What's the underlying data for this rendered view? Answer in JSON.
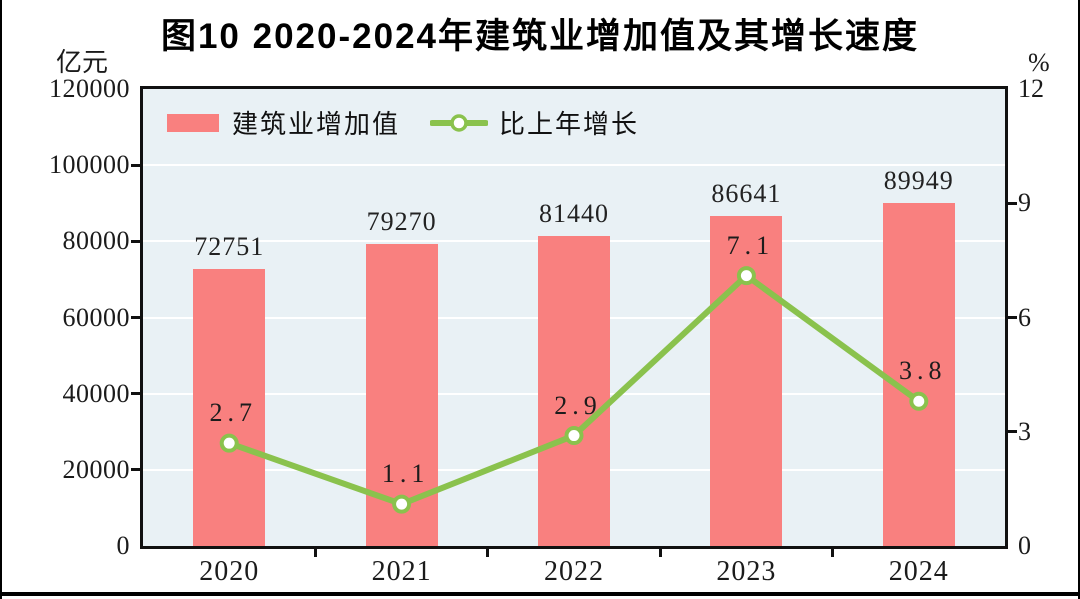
{
  "title": "图10  2020-2024年建筑业增加值及其增长速度",
  "axes": {
    "left_unit": "亿元",
    "right_unit": "%",
    "left_ticks": [
      "120000",
      "100000",
      "80000",
      "60000",
      "40000",
      "20000",
      "0"
    ],
    "right_ticks": [
      "12",
      "9",
      "6",
      "3",
      "0"
    ]
  },
  "legend": {
    "bar_label": "建筑业增加值",
    "line_label": "比上年增长"
  },
  "chart_data": {
    "type": "combo-bar-line",
    "title": "图10  2020-2024年建筑业增加值及其增长速度",
    "categories": [
      "2020",
      "2021",
      "2022",
      "2023",
      "2024"
    ],
    "series": [
      {
        "name": "建筑业增加值",
        "type": "bar",
        "axis": "left",
        "values": [
          72751,
          79270,
          81440,
          86641,
          89949
        ],
        "labels": [
          "72751",
          "79270",
          "81440",
          "86641",
          "89949"
        ]
      },
      {
        "name": "比上年增长",
        "type": "line",
        "axis": "right",
        "values": [
          2.7,
          1.1,
          2.9,
          7.1,
          3.8
        ],
        "labels": [
          "2.7",
          "1.1",
          "2.9",
          "7.1",
          "3.8"
        ]
      }
    ],
    "left_axis": {
      "unit": "亿元",
      "min": 0,
      "max": 120000,
      "tick_interval": 20000
    },
    "right_axis": {
      "unit": "%",
      "min": 0,
      "max": 12,
      "tick_interval": 3
    },
    "grid": true,
    "legend_position": "top-left-inside"
  },
  "colors": {
    "bar": "#f9807f",
    "line": "#8ac24d",
    "marker_fill": "#ffffff",
    "plot_bg": "#e9f1f5",
    "grid": "#ffffff",
    "frame": "#111111",
    "text": "#1b1b1b"
  }
}
